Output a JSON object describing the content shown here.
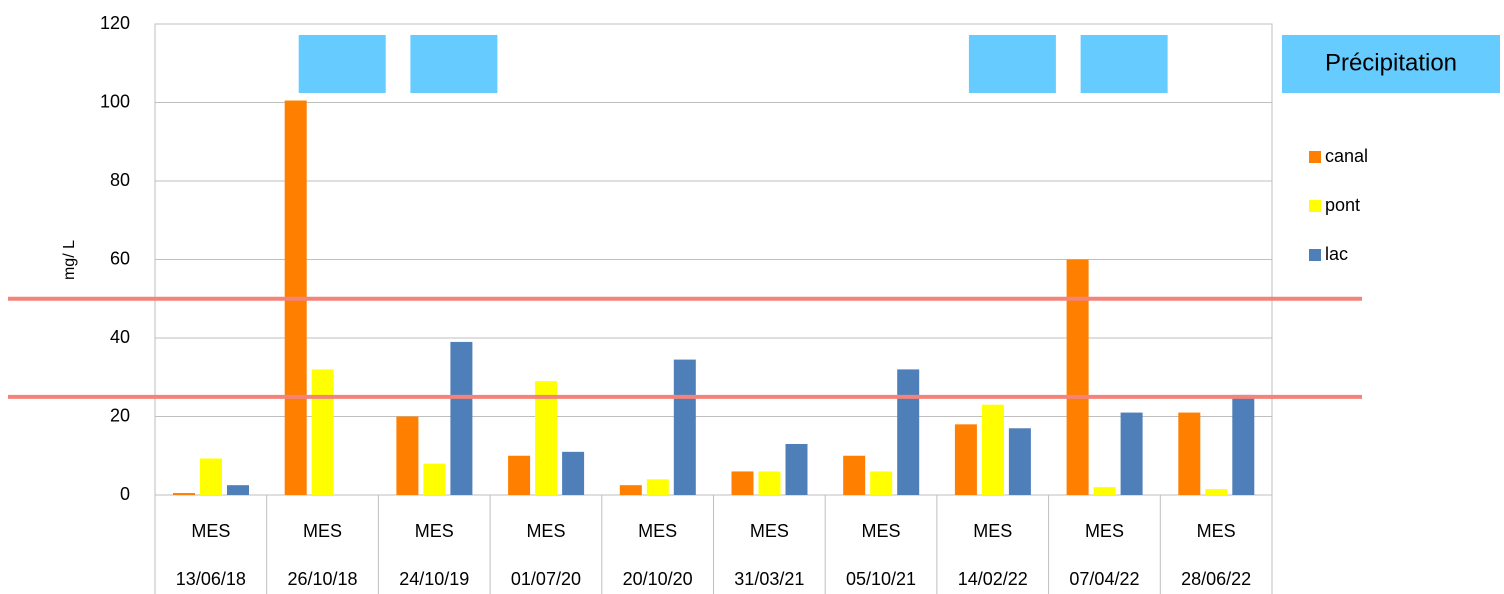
{
  "chart_data": {
    "type": "bar",
    "y_label": "mg/ L",
    "categories": [
      "MES",
      "MES",
      "MES",
      "MES",
      "MES",
      "MES",
      "MES",
      "MES",
      "MES",
      "MES"
    ],
    "dates": [
      "13/06/18",
      "26/10/18",
      "24/10/19",
      "01/07/20",
      "20/10/20",
      "31/03/21",
      "05/10/21",
      "14/02/22",
      "07/04/22",
      "28/06/22"
    ],
    "series": [
      {
        "name": "canal",
        "color": "#ff7f00",
        "values": [
          0.5,
          100.5,
          20,
          10,
          2.5,
          6,
          10,
          18,
          60,
          21
        ]
      },
      {
        "name": "pont",
        "color": "#ffff00",
        "values": [
          9.3,
          32,
          8,
          29,
          4,
          6,
          6,
          23,
          2,
          1.5
        ]
      },
      {
        "name": "lac",
        "color": "#4f7fb8",
        "values": [
          2.5,
          null,
          39,
          11,
          34.5,
          13,
          32,
          17,
          21,
          25.5
        ]
      }
    ],
    "ylim": [
      0,
      120
    ],
    "yticks": [
      0,
      20,
      40,
      60,
      80,
      100,
      120
    ],
    "grid": true,
    "precipitation": {
      "label": "Précipitation",
      "color": "#66ccff",
      "flags": [
        false,
        true,
        true,
        false,
        false,
        false,
        false,
        true,
        true,
        false
      ]
    },
    "reference_lines": [
      {
        "value": 50,
        "color": "#f4837a"
      },
      {
        "value": 25,
        "color": "#f4837a"
      }
    ],
    "legend": "right"
  }
}
